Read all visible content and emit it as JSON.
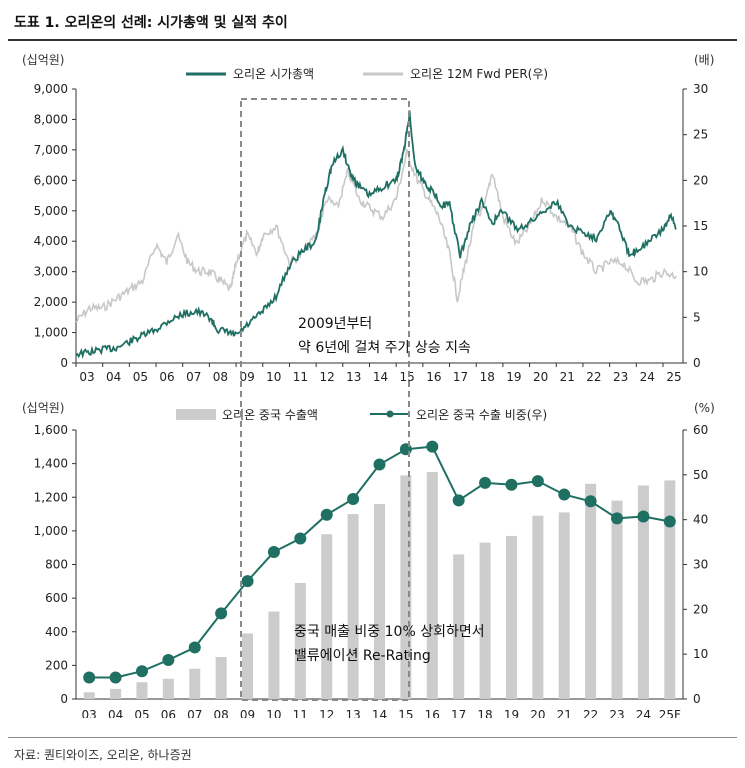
{
  "title": "도표 1. 오리온의 선례: 시가총액 및 실적 추이",
  "source": "자료: 퀀티와이즈, 오리온, 하나증권",
  "chart_data": [
    {
      "type": "line",
      "y_unit_left": "(십억원)",
      "y_unit_right": "(배)",
      "ylim_left": [
        0,
        9000
      ],
      "ylim_right": [
        0,
        30
      ],
      "yticks_left": [
        "0",
        "1,000",
        "2,000",
        "3,000",
        "4,000",
        "5,000",
        "6,000",
        "7,000",
        "8,000",
        "9,000"
      ],
      "yticks_right": [
        "0",
        "5",
        "10",
        "15",
        "20",
        "25",
        "30"
      ],
      "xticks": [
        "03",
        "04",
        "05",
        "06",
        "07",
        "08",
        "09",
        "10",
        "11",
        "12",
        "13",
        "14",
        "15",
        "16",
        "17",
        "18",
        "19",
        "20",
        "21",
        "22",
        "23",
        "24",
        "25"
      ],
      "grid": false,
      "legend": "top-center",
      "series": [
        {
          "name": "오리온 시가총액",
          "axis": "left",
          "color": "#1f6f63",
          "x": [
            2003.0,
            2003.5,
            2004.0,
            2004.5,
            2005.0,
            2005.5,
            2006.0,
            2006.5,
            2007.0,
            2007.5,
            2008.0,
            2008.3,
            2008.7,
            2009.0,
            2009.5,
            2010.0,
            2010.5,
            2011.0,
            2011.5,
            2012.0,
            2012.3,
            2012.6,
            2013.0,
            2013.3,
            2013.6,
            2014.0,
            2014.5,
            2015.0,
            2015.3,
            2015.5,
            2015.7,
            2016.0,
            2016.3,
            2016.7,
            2017.0,
            2017.4,
            2017.8,
            2018.2,
            2018.6,
            2019.0,
            2019.5,
            2020.0,
            2020.5,
            2021.0,
            2021.5,
            2022.0,
            2022.5,
            2023.0,
            2023.3,
            2023.7,
            2024.0,
            2024.5,
            2025.0,
            2025.3,
            2025.5
          ],
          "values": [
            300,
            350,
            450,
            500,
            700,
            900,
            1100,
            1400,
            1600,
            1700,
            1500,
            1100,
            1000,
            900,
            1300,
            1700,
            2200,
            3200,
            3700,
            4000,
            5500,
            6500,
            7000,
            6200,
            5800,
            5500,
            5800,
            6000,
            7000,
            8200,
            6500,
            6000,
            5700,
            5200,
            5200,
            3500,
            4600,
            5300,
            4600,
            5000,
            4400,
            4600,
            5000,
            5300,
            4500,
            4300,
            4100,
            5000,
            4600,
            3600,
            3700,
            4000,
            4400,
            4800,
            4400
          ]
        },
        {
          "name": "오리온 12M Fwd PER(우)",
          "axis": "right",
          "color": "#c8c8c8",
          "x": [
            2003.0,
            2003.5,
            2004.0,
            2004.5,
            2005.0,
            2005.5,
            2006.0,
            2006.4,
            2006.8,
            2007.2,
            2007.6,
            2008.0,
            2008.4,
            2008.8,
            2009.0,
            2009.4,
            2009.8,
            2010.0,
            2010.5,
            2011.0,
            2011.5,
            2012.0,
            2012.4,
            2012.8,
            2013.2,
            2013.6,
            2014.0,
            2014.5,
            2015.0,
            2015.4,
            2015.8,
            2016.2,
            2016.6,
            2017.0,
            2017.3,
            2017.6,
            2018.0,
            2018.3,
            2018.6,
            2019.0,
            2019.5,
            2020.0,
            2020.5,
            2021.0,
            2021.5,
            2022.0,
            2022.5,
            2023.0,
            2023.5,
            2024.0,
            2024.5,
            2025.0,
            2025.5
          ],
          "values": [
            4.5,
            6,
            6,
            7,
            8,
            9,
            13,
            11,
            14,
            11,
            10,
            10,
            9,
            8,
            11,
            14,
            12,
            14,
            15,
            11,
            12,
            14,
            18,
            17,
            21,
            18,
            17,
            16,
            18,
            23,
            20,
            18,
            16,
            12,
            7,
            11,
            16,
            17,
            21,
            16,
            13,
            15,
            18,
            16,
            15,
            12,
            10,
            11,
            11,
            9,
            9,
            10,
            9.5
          ]
        }
      ],
      "annotation": {
        "lines": [
          "2009년부터",
          "약 6년에 걸쳐 주가 상승 지속"
        ]
      }
    },
    {
      "type": "bar",
      "y_unit_left": "(십억원)",
      "y_unit_right": "(%)",
      "ylim_left": [
        0,
        1600
      ],
      "ylim_right": [
        0,
        60
      ],
      "yticks_left": [
        "0",
        "200",
        "400",
        "600",
        "800",
        "1,000",
        "1,200",
        "1,400",
        "1,600"
      ],
      "yticks_right": [
        "0",
        "10",
        "20",
        "30",
        "40",
        "50",
        "60"
      ],
      "categories": [
        "03",
        "04",
        "05",
        "06",
        "07",
        "08",
        "09",
        "10",
        "11",
        "12",
        "13",
        "14",
        "15",
        "16",
        "17",
        "18",
        "19",
        "20",
        "21",
        "22",
        "23",
        "24",
        "25F"
      ],
      "grid": false,
      "legend": "top-center",
      "series": [
        {
          "name": "오리온 중국 수출액",
          "axis": "left",
          "color": "#cccccc",
          "values": [
            40,
            60,
            100,
            120,
            180,
            250,
            390,
            520,
            690,
            980,
            1100,
            1160,
            1330,
            1350,
            860,
            930,
            970,
            1090,
            1110,
            1280,
            1180,
            1270,
            1300
          ]
        },
        {
          "name": "오리온 중국 수출 비중(우)",
          "axis": "right",
          "color": "#1f6f63",
          "values": [
            4.8,
            4.8,
            6.2,
            8.7,
            11.5,
            19.1,
            26.3,
            32.8,
            35.8,
            41.1,
            44.6,
            52.3,
            55.7,
            56.3,
            44.3,
            48.2,
            47.8,
            48.6,
            45.6,
            44.1,
            40.3,
            40.7,
            39.6
          ]
        }
      ],
      "annotation": {
        "lines": [
          "중국 매출 비중 10% 상회하면서",
          "밸류에이션 Re-Rating"
        ]
      }
    }
  ]
}
